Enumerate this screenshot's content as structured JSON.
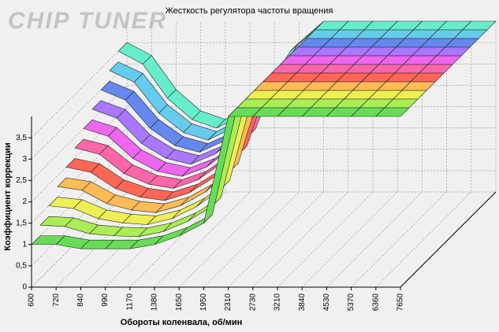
{
  "logo": "CHIP TUNER",
  "chart_data": {
    "type": "ribbon3d",
    "title": "Жесткость регулятора частоты вращения",
    "x_label": "Обороты коленвала, об/мин",
    "y_label": "Коэффициент коррекции",
    "categories": [
      "600",
      "720",
      "840",
      "990",
      "1170",
      "1380",
      "1650",
      "1950",
      "2310",
      "2730",
      "3210",
      "3840",
      "4530",
      "5370",
      "6360",
      "7650"
    ],
    "ylim": [
      0,
      4
    ],
    "yticks": [
      0,
      {
        "value": 0.5,
        "label": "0,5"
      },
      1,
      {
        "value": 1.5,
        "label": "1,5"
      },
      2,
      {
        "value": 2.5,
        "label": "2,5"
      },
      3,
      {
        "value": 3.5,
        "label": "3,5"
      }
    ],
    "grid": true,
    "series": [
      {
        "color": "#66dd55",
        "values": [
          1,
          1,
          0.9,
          0.9,
          0.9,
          1,
          1.2,
          1.5,
          4,
          4,
          4,
          4,
          4,
          4,
          4,
          4
        ]
      },
      {
        "color": "#aaee55",
        "values": [
          1.25,
          1.22,
          1.05,
          1,
          0.98,
          1.1,
          1.34,
          1.7,
          4,
          4,
          4,
          4,
          4,
          4,
          4,
          4
        ]
      },
      {
        "color": "#eeee55",
        "values": [
          1.5,
          1.44,
          1.2,
          1.1,
          1.06,
          1.2,
          1.48,
          1.9,
          4,
          4,
          4,
          4,
          4,
          4,
          4,
          4
        ]
      },
      {
        "color": "#ffbb55",
        "values": [
          1.75,
          1.66,
          1.35,
          1.2,
          1.14,
          1.3,
          1.62,
          2.1,
          4,
          4,
          4,
          4,
          4,
          4,
          4,
          4
        ]
      },
      {
        "color": "#ff6655",
        "values": [
          2,
          1.88,
          1.5,
          1.3,
          1.22,
          1.4,
          1.76,
          2.3,
          4,
          4,
          4,
          4,
          4,
          4,
          4,
          4
        ]
      },
      {
        "color": "#ff66aa",
        "values": [
          2.25,
          2.1,
          1.65,
          1.4,
          1.3,
          1.5,
          1.9,
          2.5,
          4,
          4,
          4,
          4,
          4,
          4,
          4,
          4
        ]
      },
      {
        "color": "#ee66ee",
        "values": [
          2.5,
          2.32,
          1.8,
          1.5,
          1.38,
          1.6,
          2.04,
          2.7,
          4,
          4,
          4,
          4,
          4,
          4,
          4,
          4
        ]
      },
      {
        "color": "#aa77ff",
        "values": [
          2.75,
          2.54,
          1.95,
          1.6,
          1.46,
          1.7,
          2.18,
          2.9,
          4,
          4,
          4,
          4,
          4,
          4,
          4,
          4
        ]
      },
      {
        "color": "#6688ee",
        "values": [
          3,
          2.76,
          2.1,
          1.7,
          1.54,
          1.8,
          2.32,
          3.1,
          4,
          4,
          4,
          4,
          4,
          4,
          4,
          4
        ]
      },
      {
        "color": "#66ccee",
        "values": [
          3.25,
          2.98,
          2.25,
          1.8,
          1.62,
          1.9,
          2.46,
          3.3,
          4,
          4,
          4,
          4,
          4,
          4,
          4,
          4
        ]
      },
      {
        "color": "#66eecc",
        "values": [
          3.5,
          3.2,
          2.4,
          1.9,
          1.7,
          2,
          2.6,
          3.5,
          4,
          4,
          4,
          4,
          4,
          4,
          4,
          4
        ]
      }
    ]
  }
}
